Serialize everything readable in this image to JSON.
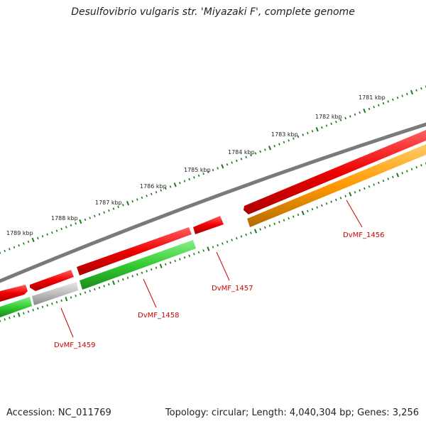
{
  "header": {
    "title": "Desulfovibrio vulgaris str. 'Miyazaki F', complete genome"
  },
  "footer": {
    "accession": "Accession: NC_011769",
    "summary": "Topology: circular; Length: 4,040,304 bp; Genes: 3,256"
  },
  "ruler": {
    "labels": [
      "1781 kbp",
      "1782 kbp",
      "1783 kbp",
      "1784 kbp",
      "1785 kbp",
      "1786 kbp",
      "1787 kbp",
      "1788 kbp",
      "1789 kbp"
    ]
  },
  "genes": [
    {
      "label": "DvMF_1456"
    },
    {
      "label": "DvMF_1457"
    },
    {
      "label": "DvMF_1458"
    },
    {
      "label": "DvMF_1459"
    }
  ],
  "colors": {
    "backbone": "#7a7a7a",
    "forward": "#ee1111",
    "green": "#33cc33",
    "orange": "#ff9900",
    "gray": "#bbbbbb",
    "ticks": "#1a7a1a",
    "label": "#cc0000"
  }
}
